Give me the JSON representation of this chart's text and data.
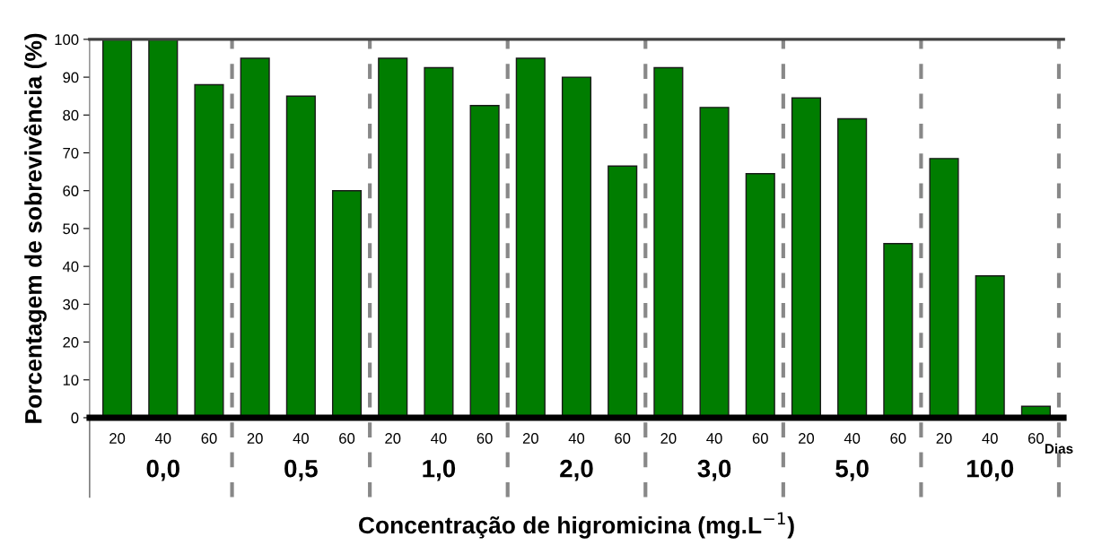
{
  "chart_data": {
    "type": "bar",
    "ylabel": "Porcentagem de sobrevivência (%)",
    "xlabel": "Concentração de higromicina (mg.L$^{−1}$)",
    "categories": [
      "20",
      "40",
      "60",
      "20",
      "40",
      "60",
      "20",
      "40",
      "60",
      "20",
      "40",
      "60",
      "20",
      "40",
      "60",
      "20",
      "40",
      "60",
      "20",
      "40",
      "60"
    ],
    "values": [
      100,
      100,
      88,
      95,
      85,
      60,
      95,
      92.5,
      82.5,
      95,
      90,
      66.5,
      92.5,
      82,
      64.5,
      84.5,
      79,
      46,
      68.5,
      37.5,
      3
    ],
    "color": "#007d00",
    "ylim": [
      0,
      100
    ],
    "yticks": [
      0,
      10,
      20,
      30,
      40,
      50,
      60,
      70,
      80,
      90,
      100
    ],
    "grid": false,
    "annotations": [
      "0,0",
      "0,5",
      "1,0",
      "2,0",
      "3,0",
      "5,0",
      "10,0",
      "Dias"
    ]
  }
}
